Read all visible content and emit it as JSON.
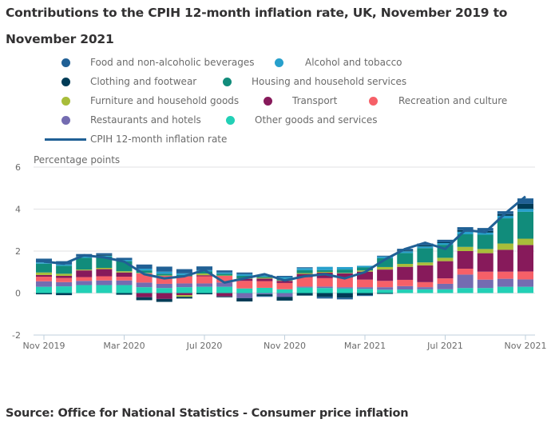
{
  "title": "Contributions to the CPIH 12-month inflation rate, UK, November 2019 to November 2021",
  "title_line1": "Contributions to the CPIH 12-month inflation rate, UK, November 2019 to",
  "title_line2": "November 2021",
  "source": "Source: Office for National Statistics - Consumer price inflation",
  "chart_data": {
    "type": "bar",
    "subtype": "stacked-bar-with-line",
    "title": "Contributions to the CPIH 12-month inflation rate, UK, November 2019 to November 2021",
    "ylabel": "Percentage points",
    "xlabel": "",
    "ylim": [
      -2,
      6
    ],
    "yticks": [
      6,
      4,
      2,
      0,
      -2
    ],
    "xtick_labels": [
      "Nov 2019",
      "Mar 2020",
      "Jul 2020",
      "Nov 2020",
      "Mar 2021",
      "Jul 2021",
      "Nov 2021"
    ],
    "grid": true,
    "legend_position": "top",
    "categories": [
      "Nov 2019",
      "Dec 2019",
      "Jan 2020",
      "Feb 2020",
      "Mar 2020",
      "Apr 2020",
      "May 2020",
      "Jun 2020",
      "Jul 2020",
      "Aug 2020",
      "Sep 2020",
      "Oct 2020",
      "Nov 2020",
      "Dec 2020",
      "Jan 2021",
      "Feb 2021",
      "Mar 2021",
      "Apr 2021",
      "May 2021",
      "Jun 2021",
      "Jul 2021",
      "Aug 2021",
      "Sep 2021",
      "Oct 2021",
      "Nov 2021"
    ],
    "series": [
      {
        "name": "Other goods and services",
        "color": "#22d0b6",
        "values": [
          0.3,
          0.32,
          0.38,
          0.38,
          0.38,
          0.28,
          0.24,
          0.28,
          0.3,
          0.3,
          0.22,
          0.25,
          0.18,
          0.26,
          0.24,
          0.22,
          0.2,
          0.16,
          0.17,
          0.18,
          0.18,
          0.24,
          0.24,
          0.3,
          0.3
        ]
      },
      {
        "name": "Restaurants and hotels",
        "color": "#746cb1",
        "values": [
          0.26,
          0.2,
          0.2,
          0.22,
          0.22,
          0.22,
          0.2,
          0.18,
          0.16,
          0.2,
          -0.24,
          -0.06,
          -0.18,
          0.05,
          0.07,
          0.06,
          0.08,
          0.12,
          0.16,
          0.1,
          0.26,
          0.64,
          0.4,
          0.38,
          0.35
        ]
      },
      {
        "name": "Recreation and culture",
        "color": "#f66068",
        "values": [
          0.22,
          0.2,
          0.18,
          0.2,
          0.18,
          0.44,
          0.38,
          0.34,
          0.34,
          0.32,
          0.36,
          0.32,
          0.3,
          0.44,
          0.4,
          0.46,
          0.36,
          0.3,
          0.3,
          0.24,
          0.26,
          0.28,
          0.38,
          0.34,
          0.38
        ]
      },
      {
        "name": "Transport",
        "color": "#871a5b",
        "values": [
          0.08,
          0.1,
          0.32,
          0.34,
          0.2,
          -0.2,
          -0.28,
          -0.1,
          0.05,
          -0.16,
          0.1,
          0.12,
          0.1,
          0.16,
          0.26,
          0.2,
          0.38,
          0.54,
          0.62,
          0.8,
          0.82,
          0.84,
          0.88,
          1.04,
          1.26
        ]
      },
      {
        "name": "Furniture and household goods",
        "color": "#a8bd3a",
        "values": [
          0.12,
          0.1,
          0.04,
          0.06,
          0.06,
          0.02,
          0.02,
          -0.08,
          0.08,
          0.02,
          0.02,
          0.04,
          0.02,
          0.04,
          0.04,
          0.02,
          0.06,
          0.12,
          0.14,
          0.14,
          0.16,
          0.2,
          0.2,
          0.3,
          0.3
        ]
      },
      {
        "name": "Housing and household services",
        "color": "#118c7b",
        "values": [
          0.42,
          0.38,
          0.56,
          0.54,
          0.48,
          0.12,
          0.08,
          0.06,
          0.1,
          0.08,
          0.12,
          0.06,
          0.08,
          0.14,
          0.08,
          0.16,
          0.14,
          0.42,
          0.52,
          0.68,
          0.62,
          0.6,
          0.68,
          1.2,
          1.28
        ]
      },
      {
        "name": "Alcohol and tobacco",
        "color": "#27a0cc",
        "values": [
          0.06,
          0.06,
          0.06,
          0.04,
          0.06,
          0.08,
          0.1,
          0.08,
          0.06,
          0.06,
          0.08,
          0.08,
          0.08,
          0.1,
          0.16,
          0.12,
          0.08,
          0.08,
          0.08,
          0.08,
          0.08,
          0.12,
          0.1,
          0.12,
          0.14
        ]
      },
      {
        "name": "Clothing and footwear",
        "color": "#003c57",
        "values": [
          -0.06,
          -0.1,
          0.02,
          0.04,
          -0.08,
          -0.14,
          -0.14,
          -0.08,
          -0.06,
          -0.04,
          -0.16,
          -0.08,
          -0.18,
          -0.12,
          -0.18,
          -0.22,
          -0.1,
          -0.04,
          0.04,
          0.06,
          0.04,
          0.08,
          0.08,
          0.08,
          0.24
        ]
      },
      {
        "name": "Food and non-alcoholic beverages",
        "color": "#206095",
        "values": [
          0.18,
          0.16,
          0.1,
          0.08,
          0.1,
          0.2,
          0.24,
          0.2,
          0.18,
          0.1,
          0.08,
          -0.04,
          0.06,
          0.04,
          -0.08,
          -0.08,
          -0.04,
          0.04,
          0.08,
          0.08,
          0.12,
          0.14,
          0.14,
          0.14,
          0.26
        ]
      }
    ],
    "line": {
      "name": "CPIH 12-month inflation rate",
      "color": "#206095",
      "values": [
        1.5,
        1.4,
        1.8,
        1.7,
        1.5,
        0.9,
        0.7,
        0.8,
        1.1,
        0.5,
        0.7,
        0.9,
        0.6,
        0.8,
        0.9,
        0.7,
        1.0,
        1.6,
        2.1,
        2.4,
        2.1,
        3.0,
        2.9,
        3.8,
        4.6
      ]
    }
  },
  "legend": {
    "items": [
      {
        "label": "Food and non-alcoholic beverages",
        "color": "#206095"
      },
      {
        "label": "Alcohol and tobacco",
        "color": "#27a0cc"
      },
      {
        "label": "Clothing and footwear",
        "color": "#003c57"
      },
      {
        "label": "Housing and household services",
        "color": "#118c7b"
      },
      {
        "label": "Furniture and household goods",
        "color": "#a8bd3a"
      },
      {
        "label": "Transport",
        "color": "#871a5b"
      },
      {
        "label": "Recreation and culture",
        "color": "#f66068"
      },
      {
        "label": "Restaurants and hotels",
        "color": "#746cb1"
      },
      {
        "label": "Other goods and services",
        "color": "#22d0b6"
      }
    ],
    "line_label": "CPIH 12-month inflation rate"
  }
}
